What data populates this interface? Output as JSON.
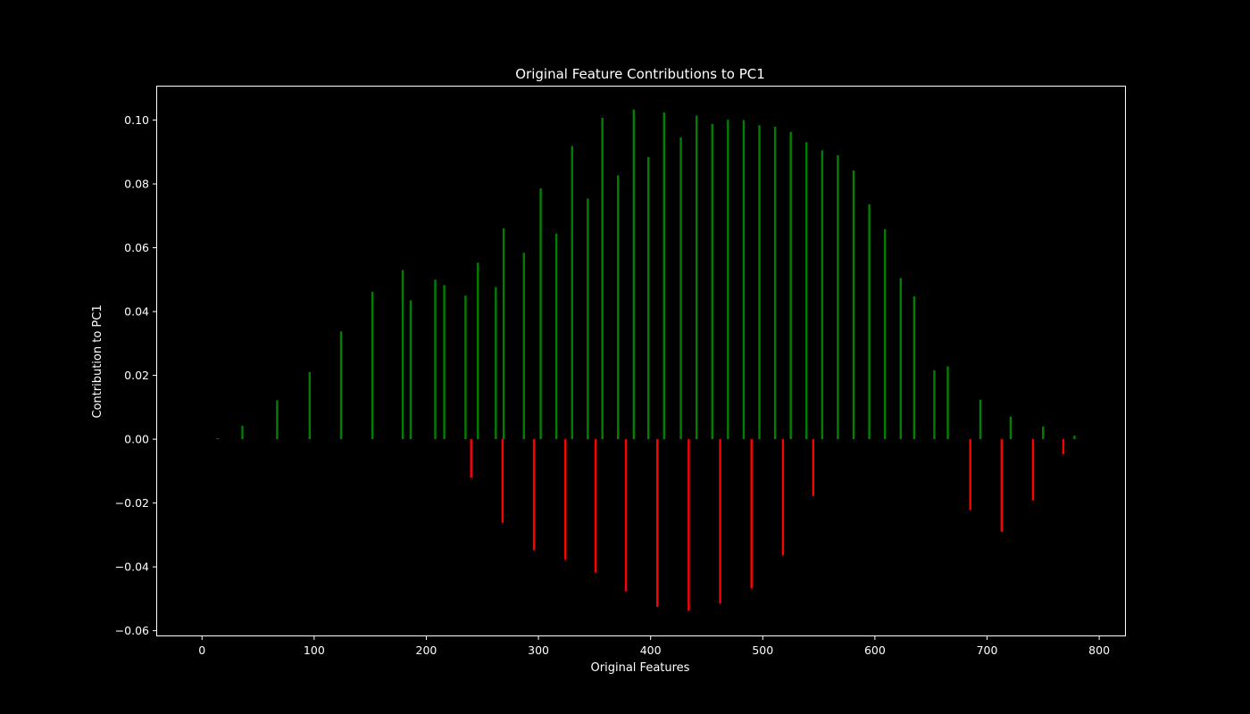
{
  "chart_data": {
    "type": "bar",
    "title": "Original Feature Contributions to PC1",
    "xlabel": "Original Features",
    "ylabel": "Contribution to PC1",
    "xlim": [
      -40,
      823
    ],
    "ylim": [
      -0.0615,
      0.1105
    ],
    "xticks": [
      0,
      100,
      200,
      300,
      400,
      500,
      600,
      700,
      800
    ],
    "xtick_labels": [
      "0",
      "100",
      "200",
      "300",
      "400",
      "500",
      "600",
      "700",
      "800"
    ],
    "yticks": [
      -0.06,
      -0.04,
      -0.02,
      0.0,
      0.02,
      0.04,
      0.06,
      0.08,
      0.1
    ],
    "ytick_labels": [
      "−0.06",
      "−0.04",
      "−0.02",
      "0.00",
      "0.02",
      "0.04",
      "0.06",
      "0.08",
      "0.10"
    ],
    "grid": false,
    "legend": "none",
    "colors": {
      "positive": "#008000",
      "negative": "#ff0000",
      "background": "#000000",
      "foreground": "#ffffff"
    },
    "bar_color_rule": "green for positive values, red for negative values",
    "x": [
      14,
      36,
      67,
      96,
      124,
      152,
      179,
      186,
      208,
      216,
      235,
      246,
      262,
      269,
      287,
      302,
      316,
      330,
      344,
      357,
      371,
      385,
      398,
      412,
      427,
      441,
      455,
      469,
      483,
      497,
      511,
      525,
      539,
      553,
      567,
      581,
      595,
      609,
      623,
      635,
      653,
      665,
      694,
      721,
      750,
      778,
      240,
      268,
      296,
      324,
      351,
      378,
      406,
      434,
      462,
      490,
      518,
      545,
      685,
      713,
      741,
      768
    ],
    "values": [
      0.0003,
      0.0042,
      0.0122,
      0.021,
      0.0338,
      0.0462,
      0.053,
      0.0435,
      0.05,
      0.0483,
      0.045,
      0.0553,
      0.0476,
      0.0661,
      0.0584,
      0.0786,
      0.0644,
      0.0919,
      0.0754,
      0.1007,
      0.0827,
      0.1033,
      0.0884,
      0.1024,
      0.0946,
      0.1014,
      0.0988,
      0.1001,
      0.1,
      0.0984,
      0.0979,
      0.0963,
      0.0931,
      0.0905,
      0.089,
      0.0842,
      0.0736,
      0.0658,
      0.0505,
      0.0448,
      0.0216,
      0.0228,
      0.0124,
      0.0071,
      0.004,
      0.0011,
      -0.0121,
      -0.0262,
      -0.0348,
      -0.0377,
      -0.0418,
      -0.0477,
      -0.0525,
      -0.0538,
      -0.0515,
      -0.0467,
      -0.0364,
      -0.0178,
      -0.0222,
      -0.029,
      -0.0192,
      -0.0047
    ]
  }
}
